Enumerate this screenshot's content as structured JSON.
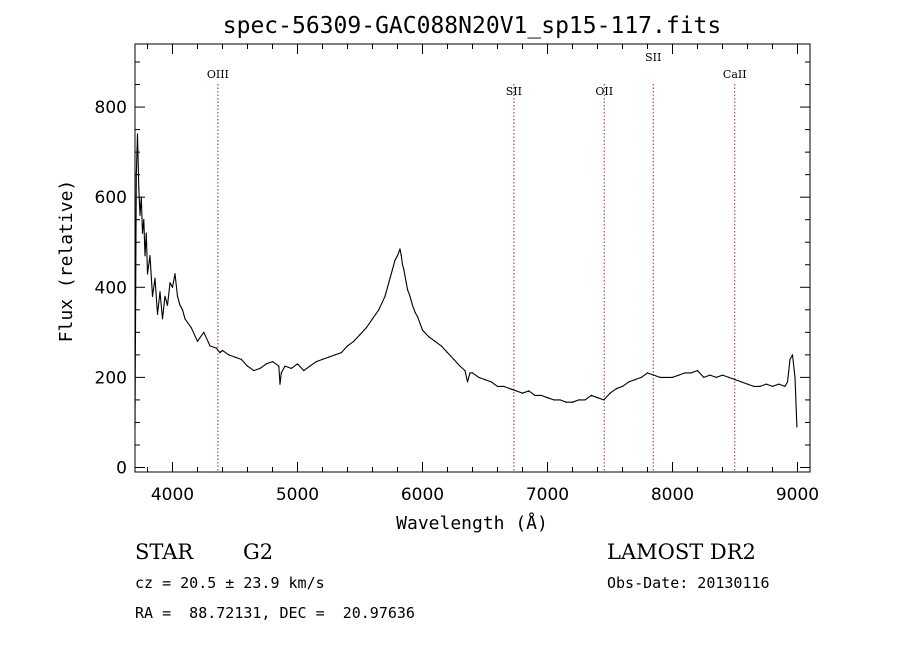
{
  "chart_data": {
    "type": "line",
    "title": "spec-56309-GAC088N20V1_sp15-117.fits",
    "xlabel": "Wavelength (Å)",
    "ylabel": "Flux (relative)",
    "xlim": [
      3700,
      9100
    ],
    "ylim": [
      -10,
      940
    ],
    "xticks": [
      4000,
      5000,
      6000,
      7000,
      8000,
      9000
    ],
    "yticks": [
      0,
      200,
      400,
      600,
      800
    ],
    "grid": false,
    "series": [
      {
        "color": "#000000",
        "x": [
          3700,
          3710,
          3720,
          3730,
          3740,
          3750,
          3760,
          3770,
          3780,
          3790,
          3800,
          3820,
          3840,
          3860,
          3880,
          3900,
          3920,
          3940,
          3960,
          3980,
          4000,
          4020,
          4040,
          4060,
          4080,
          4100,
          4150,
          4200,
          4250,
          4300,
          4350,
          4380,
          4400,
          4450,
          4500,
          4550,
          4600,
          4650,
          4700,
          4750,
          4800,
          4850,
          4860,
          4870,
          4900,
          4950,
          5000,
          5050,
          5100,
          5150,
          5200,
          5250,
          5300,
          5350,
          5400,
          5450,
          5500,
          5550,
          5600,
          5650,
          5700,
          5720,
          5740,
          5760,
          5780,
          5800,
          5820,
          5830,
          5840,
          5850,
          5860,
          5870,
          5880,
          5900,
          5920,
          5940,
          5960,
          5980,
          6000,
          6050,
          6100,
          6150,
          6200,
          6250,
          6300,
          6340,
          6360,
          6380,
          6400,
          6450,
          6500,
          6550,
          6600,
          6650,
          6700,
          6750,
          6800,
          6850,
          6900,
          6950,
          7000,
          7050,
          7100,
          7150,
          7200,
          7250,
          7300,
          7350,
          7400,
          7450,
          7500,
          7550,
          7600,
          7650,
          7700,
          7750,
          7800,
          7850,
          7900,
          7950,
          8000,
          8050,
          8100,
          8150,
          8200,
          8250,
          8300,
          8350,
          8400,
          8450,
          8500,
          8550,
          8600,
          8650,
          8700,
          8750,
          8800,
          8850,
          8900,
          8920,
          8940,
          8960,
          8980,
          8995
        ],
        "y": [
          90,
          650,
          740,
          620,
          560,
          600,
          520,
          550,
          470,
          520,
          430,
          470,
          380,
          420,
          340,
          390,
          330,
          380,
          360,
          410,
          400,
          430,
          380,
          360,
          350,
          330,
          310,
          280,
          300,
          270,
          265,
          255,
          260,
          250,
          245,
          240,
          225,
          215,
          220,
          230,
          235,
          225,
          185,
          210,
          225,
          220,
          230,
          215,
          225,
          235,
          240,
          245,
          250,
          255,
          270,
          280,
          295,
          310,
          330,
          350,
          380,
          400,
          420,
          440,
          460,
          470,
          485,
          470,
          450,
          440,
          425,
          410,
          395,
          380,
          360,
          345,
          335,
          320,
          305,
          290,
          280,
          270,
          255,
          240,
          225,
          215,
          190,
          210,
          210,
          200,
          195,
          190,
          180,
          180,
          175,
          170,
          165,
          170,
          160,
          160,
          155,
          150,
          150,
          145,
          145,
          150,
          150,
          160,
          155,
          150,
          165,
          175,
          180,
          190,
          195,
          200,
          210,
          205,
          200,
          200,
          200,
          205,
          210,
          210,
          215,
          200,
          205,
          200,
          205,
          200,
          195,
          190,
          185,
          180,
          180,
          185,
          180,
          185,
          180,
          190,
          240,
          250,
          200,
          90
        ]
      }
    ],
    "annotations": [
      {
        "label": "OIII",
        "x": 4363
      },
      {
        "label": "SII",
        "x": 6731
      },
      {
        "label": "OII",
        "x": 7454
      },
      {
        "label": "SII",
        "x": 7846
      },
      {
        "label": "CaII",
        "x": 8498
      }
    ]
  },
  "info": {
    "object_class": "STAR",
    "subclass": "G2",
    "survey": "LAMOST DR2",
    "cz": "cz = 20.5 ± 23.9 km/s",
    "obs_date": "Obs-Date: 20130116",
    "coords": "RA =  88.72131, DEC =  20.97636"
  }
}
